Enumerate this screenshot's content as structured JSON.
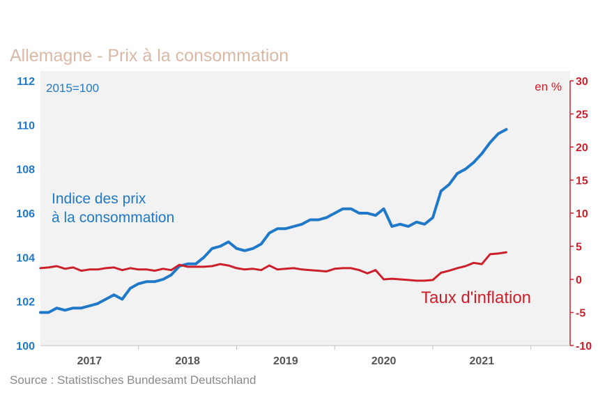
{
  "chart_data": {
    "type": "line",
    "title": "Allemagne - Prix à la consommation",
    "source": "Source :  Statistisches Bundesamt Deutschland",
    "left_axis": {
      "unit_label": "2015=100",
      "ylim": [
        100,
        112
      ],
      "ticks": [
        100,
        102,
        104,
        106,
        108,
        110,
        112
      ],
      "tick_labels": [
        "100",
        "102",
        "104",
        "106",
        "108",
        "110",
        "112"
      ]
    },
    "right_axis": {
      "unit_label": "en %",
      "ylim": [
        -10,
        30
      ],
      "ticks": [
        -10,
        -5,
        0,
        5,
        10,
        15,
        20,
        25,
        30
      ],
      "tick_labels": [
        "-10",
        "-5",
        "0",
        "5",
        "10",
        "15",
        "20",
        "25",
        "30"
      ]
    },
    "x_start": 2016.5,
    "x_end": 2021.9,
    "year_labels": [
      {
        "x": 2017,
        "label": "2017"
      },
      {
        "x": 2018,
        "label": "2018"
      },
      {
        "x": 2019,
        "label": "2019"
      },
      {
        "x": 2020,
        "label": "2020"
      },
      {
        "x": 2021,
        "label": "2021"
      }
    ],
    "series": [
      {
        "name": "Indice des prix à la consommation",
        "label_lines": [
          "Indice des prix",
          "à la consommation"
        ],
        "axis": "left",
        "color": "#1f78c8",
        "x": [
          2016.5,
          2016.5833,
          2016.6667,
          2016.75,
          2016.8333,
          2016.9167,
          2017.0,
          2017.0833,
          2017.1667,
          2017.25,
          2017.3333,
          2017.4167,
          2017.5,
          2017.5833,
          2017.6667,
          2017.75,
          2017.8333,
          2017.9167,
          2018.0,
          2018.0833,
          2018.1667,
          2018.25,
          2018.3333,
          2018.4167,
          2018.5,
          2018.5833,
          2018.6667,
          2018.75,
          2018.8333,
          2018.9167,
          2019.0,
          2019.0833,
          2019.1667,
          2019.25,
          2019.3333,
          2019.4167,
          2019.5,
          2019.5833,
          2019.6667,
          2019.75,
          2019.8333,
          2019.9167,
          2020.0,
          2020.0833,
          2020.1667,
          2020.25,
          2020.3333,
          2020.4167,
          2020.5,
          2020.5833,
          2020.6667,
          2020.75,
          2020.8333,
          2020.9167,
          2021.0,
          2021.0833,
          2021.1667,
          2021.25
        ],
        "values": [
          101.5,
          101.5,
          101.7,
          101.6,
          101.7,
          101.7,
          101.8,
          101.9,
          102.1,
          102.3,
          102.1,
          102.6,
          102.8,
          102.9,
          102.9,
          103.0,
          103.2,
          103.6,
          103.7,
          103.7,
          104.0,
          104.4,
          104.5,
          104.7,
          104.4,
          104.3,
          104.4,
          104.6,
          105.1,
          105.3,
          105.3,
          105.4,
          105.5,
          105.7,
          105.7,
          105.8,
          106.0,
          106.2,
          106.2,
          106.0,
          106.0,
          105.9,
          106.2,
          105.4,
          105.5,
          105.4,
          105.6,
          105.5,
          105.8,
          107.0,
          107.3,
          107.8,
          108.0,
          108.3,
          108.7,
          109.2,
          109.6,
          109.8
        ]
      },
      {
        "name": "Taux d'inflation",
        "label_lines": [
          "Taux d'inflation"
        ],
        "axis": "right",
        "color": "#cc1f2a",
        "x": [
          2016.5,
          2016.5833,
          2016.6667,
          2016.75,
          2016.8333,
          2016.9167,
          2017.0,
          2017.0833,
          2017.1667,
          2017.25,
          2017.3333,
          2017.4167,
          2017.5,
          2017.5833,
          2017.6667,
          2017.75,
          2017.8333,
          2017.9167,
          2018.0,
          2018.0833,
          2018.1667,
          2018.25,
          2018.3333,
          2018.4167,
          2018.5,
          2018.5833,
          2018.6667,
          2018.75,
          2018.8333,
          2018.9167,
          2019.0,
          2019.0833,
          2019.1667,
          2019.25,
          2019.3333,
          2019.4167,
          2019.5,
          2019.5833,
          2019.6667,
          2019.75,
          2019.8333,
          2019.9167,
          2020.0,
          2020.0833,
          2020.1667,
          2020.25,
          2020.3333,
          2020.4167,
          2020.5,
          2020.5833,
          2020.6667,
          2020.75,
          2020.8333,
          2020.9167,
          2021.0,
          2021.0833,
          2021.1667,
          2021.25
        ],
        "values": [
          1.7,
          1.8,
          2.0,
          1.6,
          1.8,
          1.3,
          1.5,
          1.5,
          1.7,
          1.8,
          1.4,
          1.7,
          1.5,
          1.5,
          1.3,
          1.6,
          1.4,
          2.2,
          1.9,
          1.9,
          1.9,
          2.0,
          2.3,
          2.1,
          1.7,
          1.5,
          1.6,
          1.4,
          2.1,
          1.5,
          1.6,
          1.7,
          1.5,
          1.4,
          1.3,
          1.2,
          1.6,
          1.7,
          1.7,
          1.4,
          0.9,
          1.4,
          0.0,
          0.1,
          0.0,
          -0.1,
          -0.2,
          -0.2,
          -0.1,
          1.0,
          1.3,
          1.7,
          2.0,
          2.5,
          2.3,
          3.8,
          3.9,
          4.1
        ]
      }
    ]
  }
}
